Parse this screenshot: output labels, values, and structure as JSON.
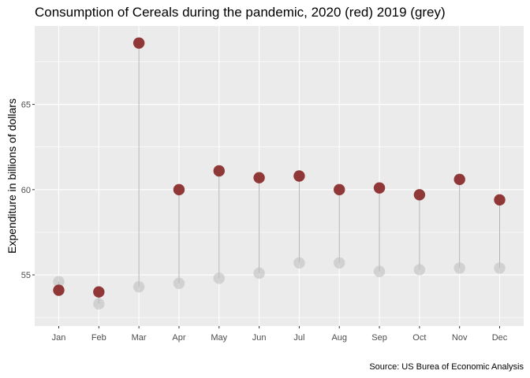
{
  "chart_data": {
    "type": "scatter",
    "title": "Consumption of Cereals during the pandemic, 2020 (red) 2019 (grey)",
    "xlabel": "",
    "ylabel": "Expenditure in billions of dollars",
    "caption": "Source: US Burea of Economic Analysis",
    "categories": [
      "Jan",
      "Feb",
      "Mar",
      "Apr",
      "May",
      "Jun",
      "Jul",
      "Aug",
      "Sep",
      "Oct",
      "Nov",
      "Dec"
    ],
    "series": [
      {
        "values": [
          54.6,
          53.3,
          54.3,
          54.5,
          54.8,
          55.1,
          55.7,
          55.7,
          55.2,
          55.3,
          55.4,
          55.4
        ],
        "color": "#bfbfbf",
        "opacity": 0.6
      },
      {
        "values": [
          54.1,
          54.0,
          68.6,
          60.0,
          61.1,
          60.7,
          60.8,
          60.0,
          60.1,
          59.7,
          60.6,
          59.4
        ],
        "color": "#8b2e2e",
        "opacity": 0.95
      }
    ],
    "segments_color": "#b3b3b3",
    "y_ticks": [
      55,
      60,
      65
    ],
    "ylim": [
      52.0,
      69.6
    ],
    "grid": true,
    "panel_background": "#ebebeb",
    "grid_color": "#ffffff"
  }
}
